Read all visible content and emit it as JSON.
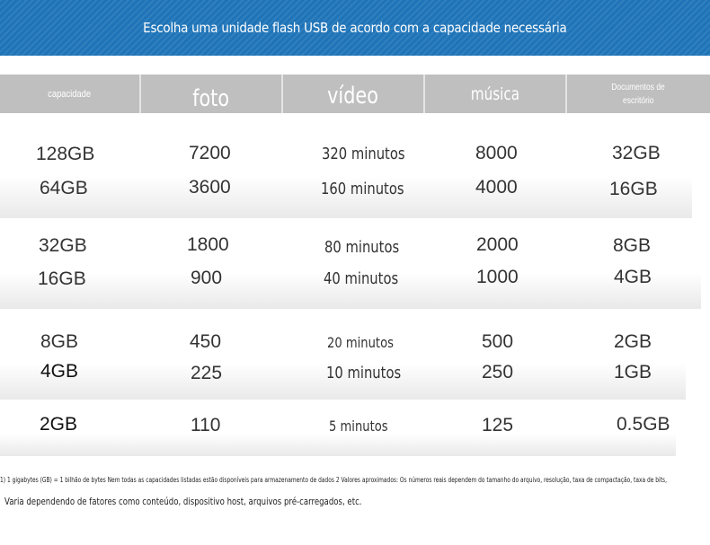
{
  "banner": {
    "title": "Escolha uma unidade flash USB de acordo com a capacidade necessária",
    "color": "#1f74b8"
  },
  "header": {
    "capacity": "capacidade",
    "photo": "foto",
    "video": "vídeo",
    "music": "música",
    "docs_line1": "Documentos de",
    "docs_line2": "escritório",
    "color": "#bfbfbf"
  },
  "rows": [
    {
      "capacity": "128GB",
      "photo": "7200",
      "video": "320 minutos",
      "music": "8000",
      "docs": "32GB"
    },
    {
      "capacity": "64GB",
      "photo": "3600",
      "video": "160 minutos",
      "music": "4000",
      "docs": "16GB"
    },
    {
      "capacity": "32GB",
      "photo": "1800",
      "video": "80 minutos",
      "music": "2000",
      "docs": "8GB"
    },
    {
      "capacity": "16GB",
      "photo": "900",
      "video": "40 minutos",
      "music": "1000",
      "docs": "4GB"
    },
    {
      "capacity": "8GB",
      "photo": "450",
      "video": "20 minutos",
      "music": "500",
      "docs": "2GB"
    },
    {
      "capacity": "4GB",
      "photo": "225",
      "video": "10 minutos",
      "music": "250",
      "docs": "1GB"
    },
    {
      "capacity": "2GB",
      "photo": "110",
      "video": "5 minutos",
      "music": "125",
      "docs": "0.5GB"
    }
  ],
  "footnotes": {
    "line1": "1) 1 gigabytes (GB) = 1 bilhão de bytes  Nem todas as capacidades listadas estão disponíveis para armazenamento de dados  2 Valores aproximados: Os números reais dependem do tamanho do arquivo, resolução, taxa de compactação, taxa de bits,",
    "line2": "Varia dependendo de fatores como conteúdo, dispositivo host, arquivos pré-carregados, etc."
  }
}
